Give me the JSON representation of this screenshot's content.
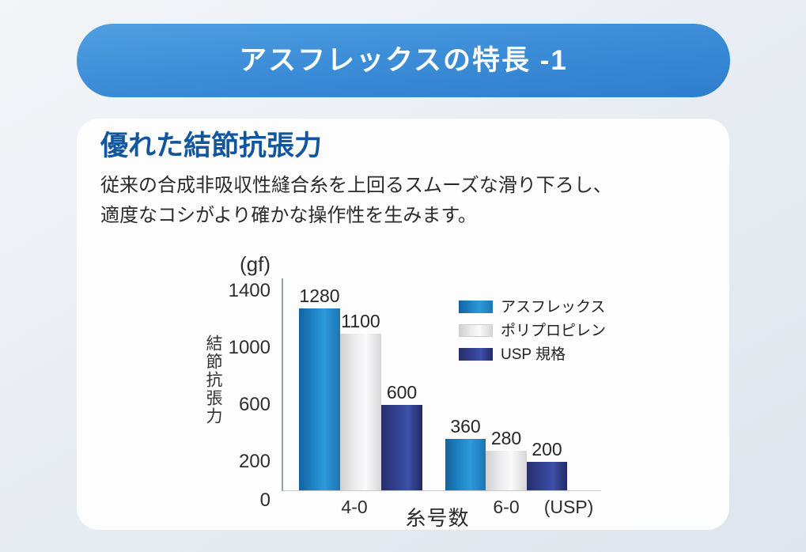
{
  "banner": {
    "title": "アスフレックスの特長 -1"
  },
  "card": {
    "heading": "優れた結節抗張力",
    "body_line1": "従来の合成非吸収性縫合糸を上回るスムーズな滑り下ろし、",
    "body_line2": "適度なコシがより確かな操作性を生みます。"
  },
  "chart_data": {
    "type": "bar",
    "unit_label": "(gf)",
    "ylabel": "結節抗張力",
    "xlabel": "糸号数",
    "x_unit_label": "(USP)",
    "categories": [
      "4-0",
      "6-0"
    ],
    "series": [
      {
        "name": "アスフレックス",
        "values": [
          1280,
          360
        ],
        "color": "#2496d6"
      },
      {
        "name": "ポリプロピレン",
        "values": [
          1100,
          280
        ],
        "color": "#e9e9ea"
      },
      {
        "name": "USP 規格",
        "values": [
          600,
          200
        ],
        "color": "#36479b"
      }
    ],
    "yticks": [
      0,
      200,
      600,
      1000,
      1400
    ],
    "ylim": [
      0,
      1480
    ],
    "grid": false,
    "legend_position": "upper right"
  },
  "colors": {
    "banner_gradient_top": "#509fe1",
    "banner_gradient_bottom": "#2e7ecd",
    "heading_blue": "#12569d",
    "body_text": "#2b2b2b",
    "card_background": "#fdfdfe",
    "page_background": "#e7ebf2",
    "axis_line": "#9aa0a6",
    "baseline": "#c3c6ca"
  }
}
